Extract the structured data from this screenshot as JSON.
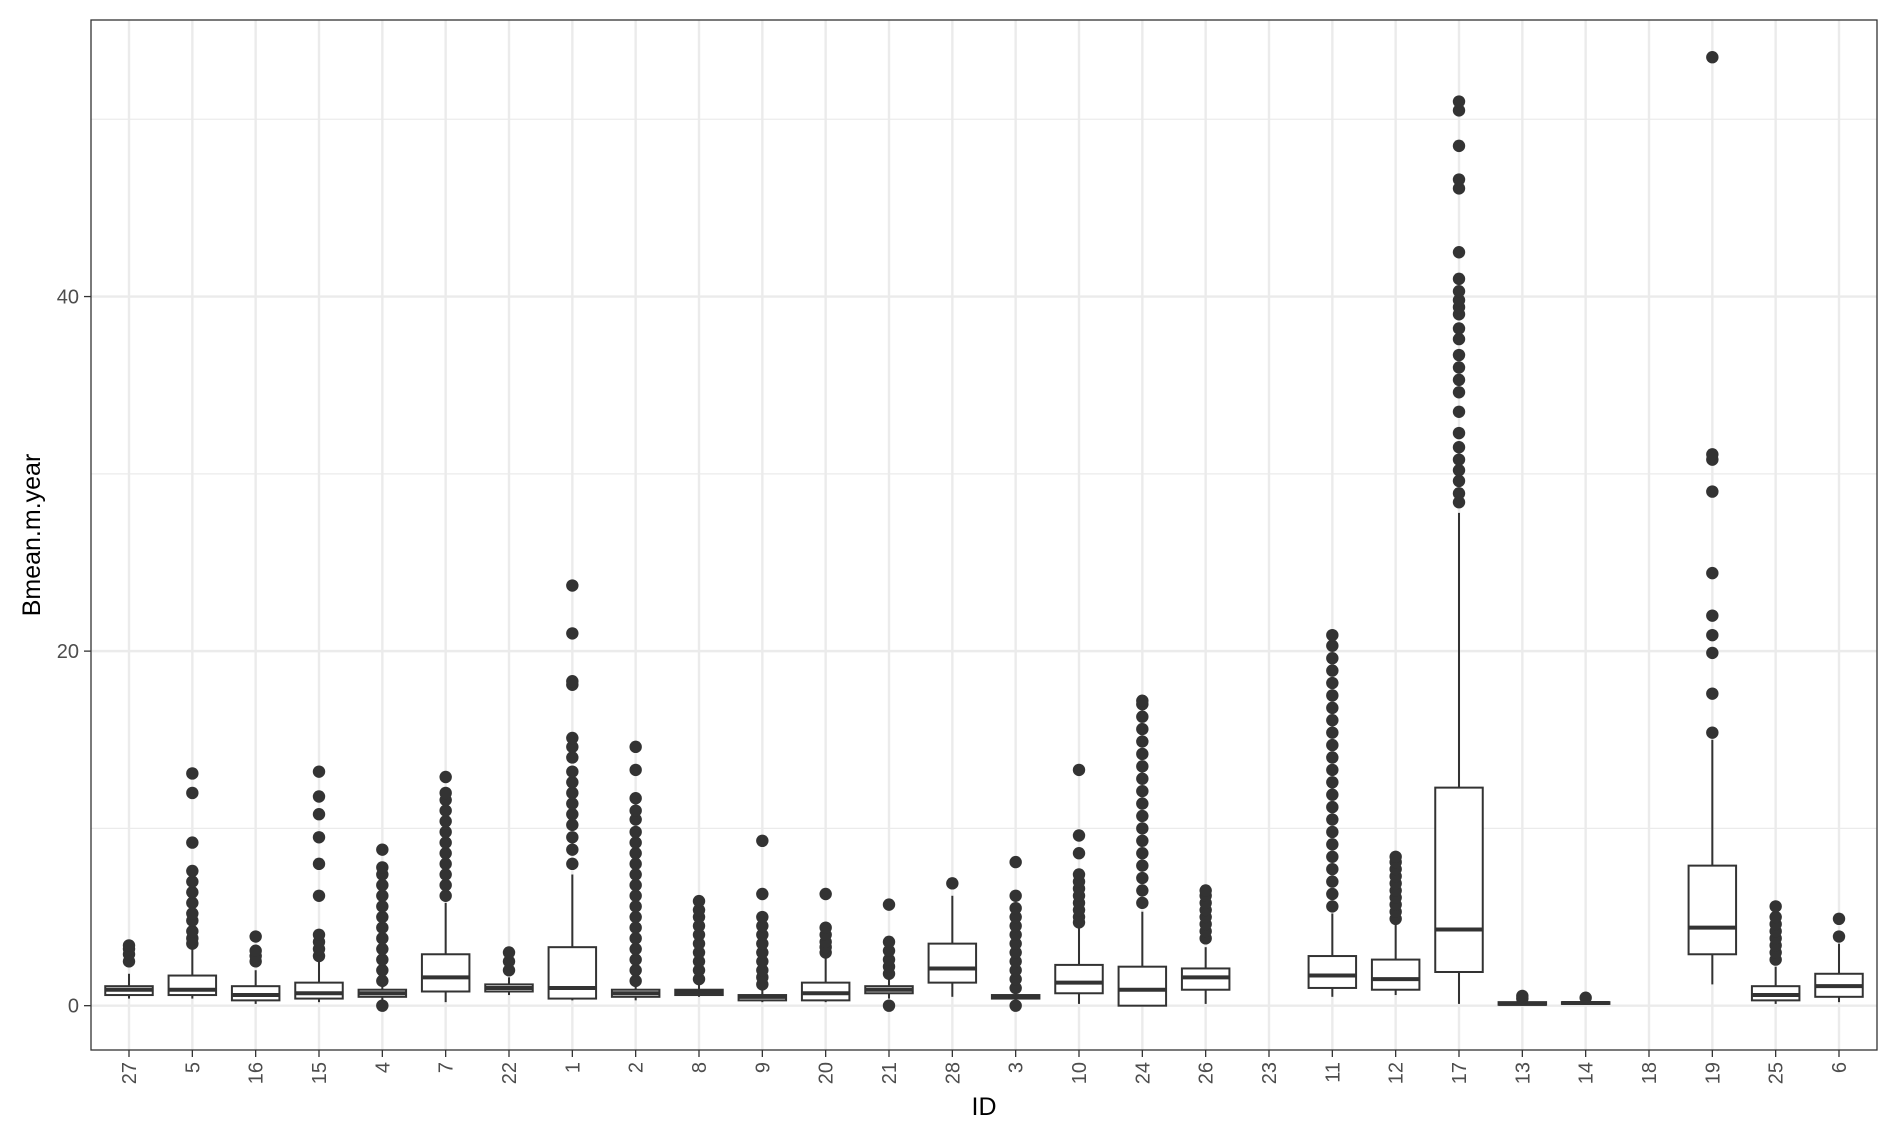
{
  "chart_data": {
    "type": "box",
    "xlabel": "ID",
    "ylabel": "Bmean.m.year",
    "ylim": [
      -2.5,
      55.6
    ],
    "yticks": [
      0,
      20,
      40
    ],
    "grid": true,
    "box_color": "#333333",
    "grid_color": "#ebebeb",
    "categories": [
      "27",
      "5",
      "16",
      "15",
      "4",
      "7",
      "22",
      "1",
      "2",
      "8",
      "9",
      "20",
      "21",
      "28",
      "3",
      "10",
      "24",
      "26",
      "23",
      "11",
      "12",
      "17",
      "13",
      "14",
      "18",
      "19",
      "25",
      "6"
    ],
    "boxes": [
      {
        "id": "27",
        "min": 0.4,
        "q1": 0.6,
        "median": 0.9,
        "q3": 1.1,
        "max": 1.8,
        "outliers": [
          2.5,
          2.9,
          3.2,
          3.4
        ]
      },
      {
        "id": "5",
        "min": 0.4,
        "q1": 0.6,
        "median": 0.9,
        "q3": 1.7,
        "max": 3.2,
        "outliers": [
          3.5,
          3.8,
          4.2,
          4.8,
          5.2,
          5.8,
          6.4,
          7.0,
          7.6,
          9.2,
          12.0,
          13.1
        ]
      },
      {
        "id": "16",
        "min": 0.1,
        "q1": 0.3,
        "median": 0.6,
        "q3": 1.1,
        "max": 2.0,
        "outliers": [
          2.5,
          2.8,
          3.1,
          3.9
        ]
      },
      {
        "id": "15",
        "min": 0.2,
        "q1": 0.4,
        "median": 0.7,
        "q3": 1.3,
        "max": 2.5,
        "outliers": [
          2.8,
          3.2,
          3.6,
          4.0,
          6.2,
          8.0,
          9.5,
          10.8,
          11.8,
          13.2
        ]
      },
      {
        "id": "4",
        "min": 0.3,
        "q1": 0.5,
        "median": 0.7,
        "q3": 0.9,
        "max": 1.1,
        "outliers": [
          0.0,
          1.4,
          2.0,
          2.6,
          3.2,
          3.8,
          4.4,
          5.0,
          5.6,
          6.2,
          6.8,
          7.4,
          7.8,
          8.8
        ]
      },
      {
        "id": "7",
        "min": 0.2,
        "q1": 0.8,
        "median": 1.6,
        "q3": 2.9,
        "max": 5.8,
        "outliers": [
          6.2,
          6.8,
          7.4,
          8.0,
          8.6,
          9.2,
          9.8,
          10.4,
          11.0,
          11.6,
          12.0,
          12.9
        ]
      },
      {
        "id": "22",
        "min": 0.6,
        "q1": 0.8,
        "median": 1.0,
        "q3": 1.2,
        "max": 1.6,
        "outliers": [
          2.0,
          2.5,
          3.0
        ]
      },
      {
        "id": "1",
        "min": 0.3,
        "q1": 0.4,
        "median": 1.0,
        "q3": 3.3,
        "max": 7.4,
        "outliers": [
          8.0,
          8.8,
          9.5,
          10.2,
          10.8,
          11.4,
          12.0,
          12.6,
          13.2,
          14.0,
          14.6,
          15.1,
          18.1,
          18.3,
          21.0,
          23.7
        ]
      },
      {
        "id": "2",
        "min": 0.3,
        "q1": 0.5,
        "median": 0.7,
        "q3": 0.9,
        "max": 1.1,
        "outliers": [
          1.4,
          2.0,
          2.6,
          3.2,
          3.8,
          4.4,
          5.0,
          5.6,
          6.2,
          6.8,
          7.4,
          8.0,
          8.6,
          9.2,
          9.8,
          10.5,
          11.0,
          11.7,
          13.3,
          14.6
        ]
      },
      {
        "id": "8",
        "min": 0.5,
        "q1": 0.6,
        "median": 0.75,
        "q3": 0.9,
        "max": 1.2,
        "outliers": [
          1.5,
          2.0,
          2.5,
          3.0,
          3.5,
          4.0,
          4.5,
          5.0,
          5.4,
          5.9
        ]
      },
      {
        "id": "9",
        "min": 0.2,
        "q1": 0.3,
        "median": 0.5,
        "q3": 0.6,
        "max": 0.9,
        "outliers": [
          1.2,
          1.6,
          2.0,
          2.5,
          3.0,
          3.5,
          4.0,
          4.5,
          5.0,
          6.3,
          9.3
        ]
      },
      {
        "id": "20",
        "min": 0.2,
        "q1": 0.3,
        "median": 0.7,
        "q3": 1.3,
        "max": 2.7,
        "outliers": [
          3.0,
          3.3,
          3.6,
          4.0,
          4.4,
          6.3
        ]
      },
      {
        "id": "21",
        "min": 0.4,
        "q1": 0.7,
        "median": 0.9,
        "q3": 1.1,
        "max": 1.5,
        "outliers": [
          0.0,
          1.8,
          2.2,
          2.6,
          3.1,
          3.6,
          5.7
        ]
      },
      {
        "id": "28",
        "min": 0.5,
        "q1": 1.3,
        "median": 2.1,
        "q3": 3.5,
        "max": 6.2,
        "outliers": [
          6.9
        ]
      },
      {
        "id": "3",
        "min": 0.3,
        "q1": 0.4,
        "median": 0.5,
        "q3": 0.6,
        "max": 0.8,
        "outliers": [
          0.0,
          1.0,
          1.5,
          2.0,
          2.5,
          3.0,
          3.5,
          4.0,
          4.5,
          5.0,
          5.5,
          6.2,
          8.1
        ]
      },
      {
        "id": "10",
        "min": 0.1,
        "q1": 0.7,
        "median": 1.3,
        "q3": 2.3,
        "max": 4.4,
        "outliers": [
          4.7,
          5.0,
          5.4,
          5.8,
          6.2,
          6.6,
          7.0,
          7.4,
          8.6,
          9.6,
          13.3
        ]
      },
      {
        "id": "24",
        "min": 0.0,
        "q1": 0.0,
        "median": 0.9,
        "q3": 2.2,
        "max": 5.3,
        "outliers": [
          5.8,
          6.5,
          7.2,
          7.9,
          8.6,
          9.3,
          10.0,
          10.7,
          11.4,
          12.1,
          12.8,
          13.5,
          14.2,
          14.9,
          15.6,
          16.3,
          17.0,
          17.2
        ]
      },
      {
        "id": "26",
        "min": 0.1,
        "q1": 0.9,
        "median": 1.6,
        "q3": 2.1,
        "max": 3.3,
        "outliers": [
          3.8,
          4.2,
          4.6,
          5.0,
          5.4,
          5.8,
          6.2,
          6.5
        ]
      },
      {
        "id": "23",
        "empty": true
      },
      {
        "id": "11",
        "min": 0.5,
        "q1": 1.0,
        "median": 1.7,
        "q3": 2.8,
        "max": 5.2,
        "outliers": [
          5.6,
          6.3,
          7.0,
          7.7,
          8.4,
          9.1,
          9.8,
          10.5,
          11.2,
          11.9,
          12.6,
          13.3,
          14.0,
          14.7,
          15.4,
          16.1,
          16.8,
          17.5,
          18.2,
          18.9,
          19.6,
          20.3,
          20.9
        ]
      },
      {
        "id": "12",
        "min": 0.6,
        "q1": 0.9,
        "median": 1.5,
        "q3": 2.6,
        "max": 4.6,
        "outliers": [
          4.9,
          5.3,
          5.7,
          6.1,
          6.5,
          6.9,
          7.3,
          7.7,
          8.1,
          8.4
        ]
      },
      {
        "id": "17",
        "min": 0.1,
        "q1": 1.9,
        "median": 4.3,
        "q3": 12.3,
        "max": 27.8,
        "outliers": [
          28.4,
          28.9,
          29.6,
          30.2,
          30.8,
          31.5,
          32.3,
          33.5,
          34.6,
          35.3,
          36.0,
          36.7,
          37.6,
          38.2,
          39.0,
          39.4,
          39.8,
          40.3,
          41.0,
          42.5,
          46.1,
          46.6,
          48.5,
          50.5,
          51.0
        ]
      },
      {
        "id": "13",
        "min": 0.0,
        "q1": 0.05,
        "median": 0.1,
        "q3": 0.2,
        "max": 0.3,
        "outliers": [
          0.4,
          0.55
        ]
      },
      {
        "id": "14",
        "min": 0.05,
        "q1": 0.1,
        "median": 0.15,
        "q3": 0.2,
        "max": 0.3,
        "outliers": [
          0.45
        ]
      },
      {
        "id": "18",
        "empty": true
      },
      {
        "id": "19",
        "min": 1.2,
        "q1": 2.9,
        "median": 4.4,
        "q3": 7.9,
        "max": 15.0,
        "outliers": [
          15.4,
          17.6,
          19.9,
          20.9,
          22.0,
          24.4,
          29.0,
          30.8,
          31.1,
          53.5
        ]
      },
      {
        "id": "25",
        "min": 0.1,
        "q1": 0.3,
        "median": 0.6,
        "q3": 1.1,
        "max": 2.2,
        "outliers": [
          2.6,
          3.0,
          3.4,
          3.8,
          4.2,
          4.6,
          5.0,
          5.6
        ]
      },
      {
        "id": "6",
        "min": 0.2,
        "q1": 0.5,
        "median": 1.1,
        "q3": 1.8,
        "max": 3.5,
        "outliers": [
          3.9,
          4.9
        ]
      }
    ]
  }
}
